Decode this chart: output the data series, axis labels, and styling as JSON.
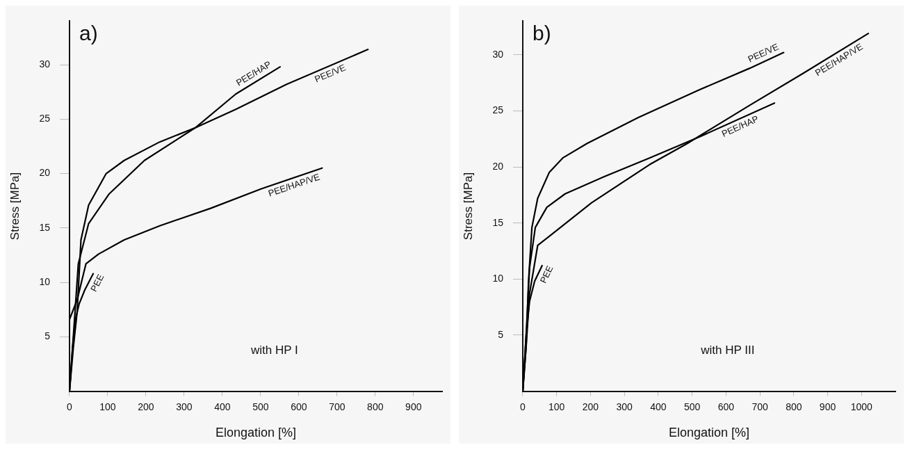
{
  "chart_data": [
    {
      "type": "line",
      "title": "a)",
      "xlabel": "Elongation [%]",
      "ylabel": "Stress [MPa]",
      "annotations": [
        "with HP I"
      ],
      "xlim": [
        0,
        975
      ],
      "ylim": [
        0,
        34
      ],
      "xticks": [
        0,
        100,
        200,
        300,
        400,
        500,
        600,
        700,
        800,
        900
      ],
      "yticks": [
        5,
        10,
        15,
        20,
        25,
        30
      ],
      "marker": "none",
      "line_style": "solid",
      "series": [
        {
          "name": "PEE",
          "color": "#000000",
          "x": [
            0,
            8,
            15,
            25,
            40,
            62
          ],
          "values": [
            0,
            4,
            6.5,
            8,
            9.3,
            10.8
          ]
        },
        {
          "name": "PEE/HAP",
          "color": "#000000",
          "x": [
            0,
            10,
            23,
            50,
            103,
            196,
            329,
            435,
            551
          ],
          "values": [
            0,
            5,
            11.7,
            15.4,
            18.1,
            21.2,
            24.2,
            27.3,
            29.8
          ]
        },
        {
          "name": "PEE/VE",
          "color": "#000000",
          "x": [
            0,
            10,
            20,
            30,
            50,
            96,
            143,
            236,
            329,
            435,
            568,
            781
          ],
          "values": [
            0,
            4,
            7.3,
            13.9,
            17.1,
            20,
            21.2,
            22.9,
            24.2,
            25.9,
            28.2,
            31.4
          ]
        },
        {
          "name": "PEE/HAP/VE",
          "color": "#000000",
          "x": [
            0,
            20,
            43,
            76,
            143,
            236,
            369,
            502,
            661
          ],
          "values": [
            6.6,
            8.4,
            11.7,
            12.6,
            13.9,
            15.2,
            16.8,
            18.6,
            20.5
          ]
        }
      ]
    },
    {
      "type": "line",
      "title": "b)",
      "xlabel": "Elongation [%]",
      "ylabel": "Stress [MPa]",
      "annotations": [
        "with HP III"
      ],
      "xlim": [
        0,
        1100
      ],
      "ylim": [
        0,
        33
      ],
      "xticks": [
        0,
        100,
        200,
        300,
        400,
        500,
        600,
        700,
        800,
        900,
        1000
      ],
      "yticks": [
        5,
        10,
        15,
        20,
        25,
        30
      ],
      "marker": "none",
      "line_style": "solid",
      "series": [
        {
          "name": "PEE",
          "color": "#000000",
          "x": [
            0,
            10,
            20,
            35,
            57
          ],
          "values": [
            0,
            5,
            8,
            9.8,
            11.2
          ]
        },
        {
          "name": "PEE/VE",
          "color": "#000000",
          "x": [
            0,
            10,
            17,
            27,
            44,
            78,
            118,
            190,
            341,
            523,
            670,
            770
          ],
          "values": [
            0,
            4,
            9.8,
            14.6,
            17.2,
            19.5,
            20.8,
            22.1,
            24.4,
            26.9,
            28.8,
            30.2
          ]
        },
        {
          "name": "PEE/HAP",
          "color": "#000000",
          "x": [
            0,
            10,
            20,
            37,
            71,
            125,
            238,
            374,
            523,
            743
          ],
          "values": [
            0,
            5,
            11,
            14.6,
            16.4,
            17.6,
            19.1,
            20.8,
            22.7,
            25.7
          ]
        },
        {
          "name": "PEE/HAP/VE",
          "color": "#000000",
          "x": [
            0,
            10,
            20,
            44,
            82,
            203,
            374,
            486,
            670,
            825,
            1020
          ],
          "values": [
            0,
            4,
            8.7,
            13,
            13.9,
            16.8,
            20.2,
            22.1,
            25.5,
            28.3,
            31.9
          ]
        }
      ]
    }
  ]
}
